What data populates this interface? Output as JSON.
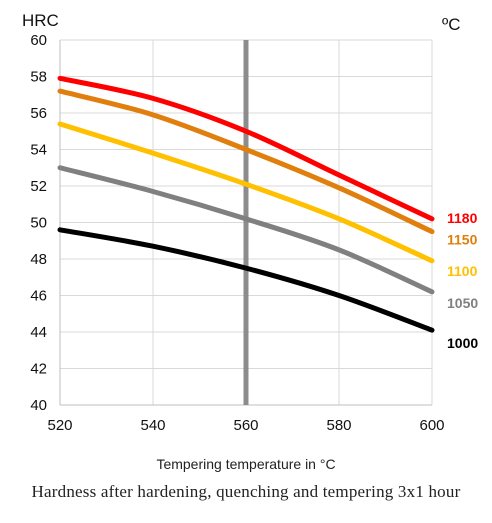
{
  "chart_data": {
    "type": "line",
    "y_unit_label": "HRC",
    "legend_title": "ºC",
    "xlabel": "Tempering temperature in °C",
    "caption": "Hardness after hardening, quenching and tempering  3x1 hour",
    "xlim": [
      520,
      600
    ],
    "ylim": [
      40,
      60
    ],
    "x_ticks": [
      520,
      540,
      560,
      580,
      600
    ],
    "y_ticks": [
      40,
      42,
      44,
      46,
      48,
      50,
      52,
      54,
      56,
      58,
      60
    ],
    "grid": true,
    "marker_line_x": 560,
    "x": [
      520,
      540,
      560,
      580,
      600
    ],
    "series": [
      {
        "name": "1180",
        "color": "#ff0000",
        "values": [
          57.9,
          56.8,
          55.0,
          52.6,
          50.2
        ]
      },
      {
        "name": "1150",
        "color": "#e07f0d",
        "values": [
          57.2,
          55.9,
          54.0,
          51.9,
          49.5
        ]
      },
      {
        "name": "1100",
        "color": "#ffc000",
        "values": [
          55.4,
          53.8,
          52.1,
          50.2,
          47.9
        ]
      },
      {
        "name": "1050",
        "color": "#808080",
        "values": [
          53.0,
          51.7,
          50.2,
          48.5,
          46.2
        ]
      },
      {
        "name": "1000",
        "color": "#000000",
        "values": [
          49.6,
          48.7,
          47.5,
          46.0,
          44.1
        ]
      }
    ]
  }
}
